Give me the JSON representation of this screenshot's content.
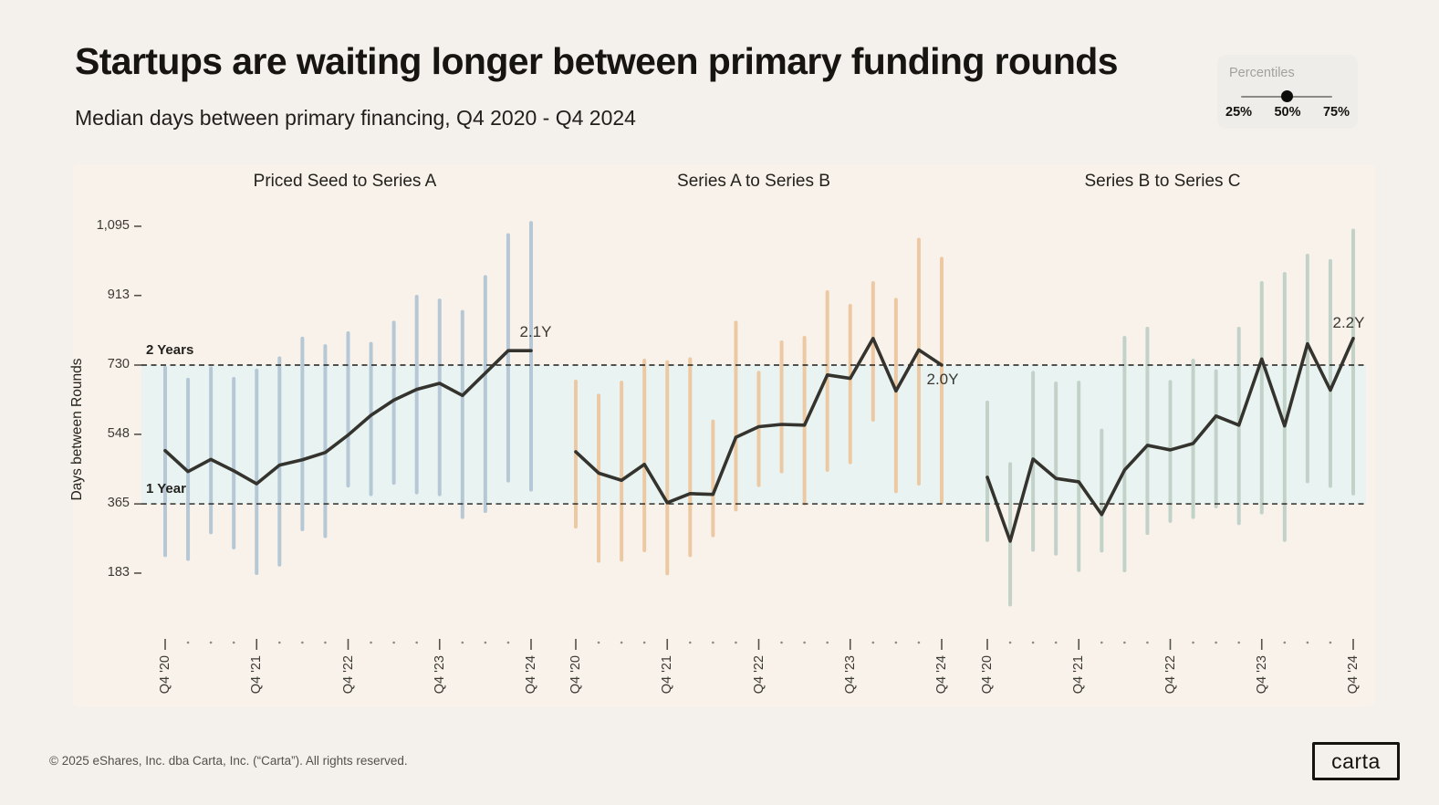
{
  "header": {
    "title": "Startups are waiting longer between primary funding rounds",
    "subtitle": "Median days between primary financing, Q4 2020 - Q4 2024"
  },
  "percentiles_widget": {
    "label": "Percentiles",
    "options": [
      "25%",
      "50%",
      "75%"
    ],
    "selected": "50%"
  },
  "colors": {
    "page_bg": "#f4f1ec",
    "card_bg": "#f8f2ea",
    "band": "#e9f4f2",
    "median_line": "#34332e",
    "reference_line": "#1e1d1a",
    "axis_tick": "#55524b",
    "tick_dot": "#8d8a83",
    "seed_to_a_bar": "#b6c8d5",
    "a_to_b_bar": "#ecc9a3",
    "b_to_c_bar": "#c2d2c9"
  },
  "footer": {
    "copyright": "© 2025 eShares, Inc. dba Carta, Inc. (“Carta”). All rights reserved.",
    "logo_text": "carta"
  },
  "chart_data": {
    "type": "line",
    "title": "Median days between primary financing, Q4 2020 - Q4 2024",
    "ylabel": "Days between Rounds",
    "unit": "days between rounds",
    "ylim": [
      90,
      1130
    ],
    "y_ticks": [
      1095,
      913,
      730,
      548,
      365,
      183
    ],
    "y_tick_labels": [
      "1,095",
      "913",
      "730",
      "548",
      "365",
      "183"
    ],
    "x_quarters": [
      "Q4 '20",
      "Q1 '21",
      "Q2 '21",
      "Q3 '21",
      "Q4 '21",
      "Q1 '22",
      "Q2 '22",
      "Q3 '22",
      "Q4 '22",
      "Q1 '23",
      "Q2 '23",
      "Q3 '23",
      "Q4 '23",
      "Q1 '24",
      "Q2 '24",
      "Q3 '24",
      "Q4 '24"
    ],
    "x_year_labels": [
      "Q4 '20",
      "Q4 '21",
      "Q4 '22",
      "Q4 '23",
      "Q4 '24"
    ],
    "band": {
      "from": 365,
      "to": 730
    },
    "reference_lines": [
      {
        "value": 730,
        "label": "2 Years"
      },
      {
        "value": 365,
        "label": "1 Year"
      }
    ],
    "panels": [
      {
        "title": "Priced Seed to Series A",
        "end_label": "2.1Y",
        "bar_color": "#b6c8d5",
        "median": [
          505,
          450,
          482,
          452,
          418,
          467,
          481,
          500,
          546,
          598,
          638,
          666,
          682,
          650,
          709,
          768,
          768
        ],
        "p25": [
          230,
          220,
          290,
          250,
          183,
          205,
          298,
          280,
          413,
          390,
          420,
          395,
          390,
          330,
          346,
          426,
          402
        ],
        "p75": [
          723,
          692,
          722,
          694,
          716,
          748,
          800,
          780,
          814,
          786,
          842,
          910,
          900,
          870,
          962,
          1072,
          1104
        ]
      },
      {
        "title": "Series A to Series B",
        "end_label": "2.0Y",
        "bar_color": "#ecc9a3",
        "median": [
          502,
          446,
          427,
          469,
          368,
          392,
          390,
          540,
          568,
          574,
          572,
          704,
          695,
          800,
          662,
          770,
          730
        ],
        "p25": [
          305,
          215,
          218,
          243,
          182,
          230,
          282,
          350,
          414,
          450,
          366,
          454,
          474,
          586,
          398,
          418,
          370
        ],
        "p75": [
          687,
          650,
          684,
          742,
          738,
          746,
          582,
          842,
          710,
          790,
          802,
          922,
          886,
          946,
          902,
          1060,
          1010
        ]
      },
      {
        "title": "Series B to Series C",
        "end_label": "2.2Y",
        "bar_color": "#c2d2c9",
        "median": [
          435,
          267,
          483,
          432,
          423,
          337,
          454,
          519,
          507,
          524,
          596,
          572,
          746,
          570,
          786,
          664,
          800
        ],
        "p25": [
          270,
          100,
          244,
          234,
          191,
          242,
          190,
          288,
          320,
          330,
          358,
          314,
          342,
          270,
          424,
          412,
          392
        ],
        "p75": [
          632,
          470,
          710,
          682,
          684,
          558,
          802,
          826,
          686,
          742,
          714,
          826,
          946,
          970,
          1018,
          1004,
          1084
        ]
      }
    ]
  }
}
